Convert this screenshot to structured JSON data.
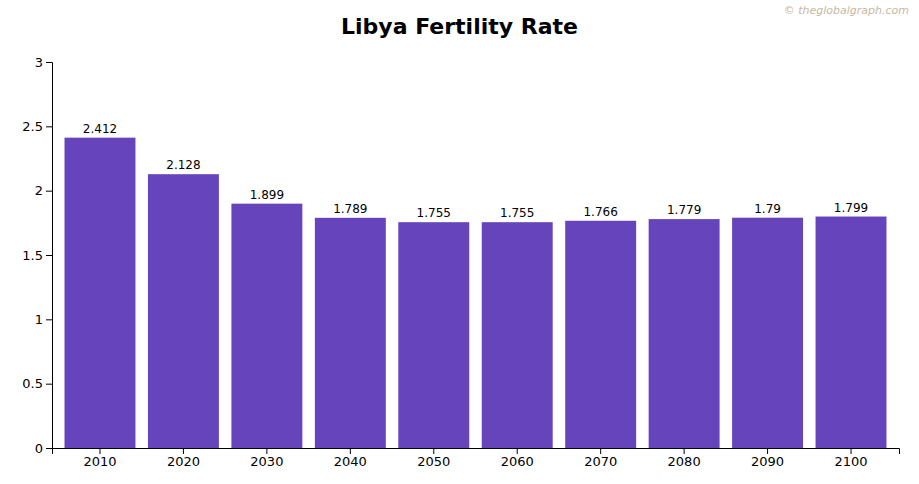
{
  "chart_data": {
    "type": "bar",
    "title": "Libya Fertility Rate",
    "categories": [
      "2010",
      "2020",
      "2030",
      "2040",
      "2050",
      "2060",
      "2070",
      "2080",
      "2090",
      "2100"
    ],
    "values": [
      2.412,
      2.128,
      1.899,
      1.789,
      1.755,
      1.755,
      1.766,
      1.779,
      1.79,
      1.799
    ],
    "color": "#6644bb",
    "ylim": [
      0,
      3.0
    ],
    "yticks": [
      0,
      0.5,
      1,
      1.5,
      2,
      2.5,
      3
    ],
    "grid": false,
    "data_labels": true,
    "annotations": [
      "© theglobalgraph.com"
    ]
  }
}
